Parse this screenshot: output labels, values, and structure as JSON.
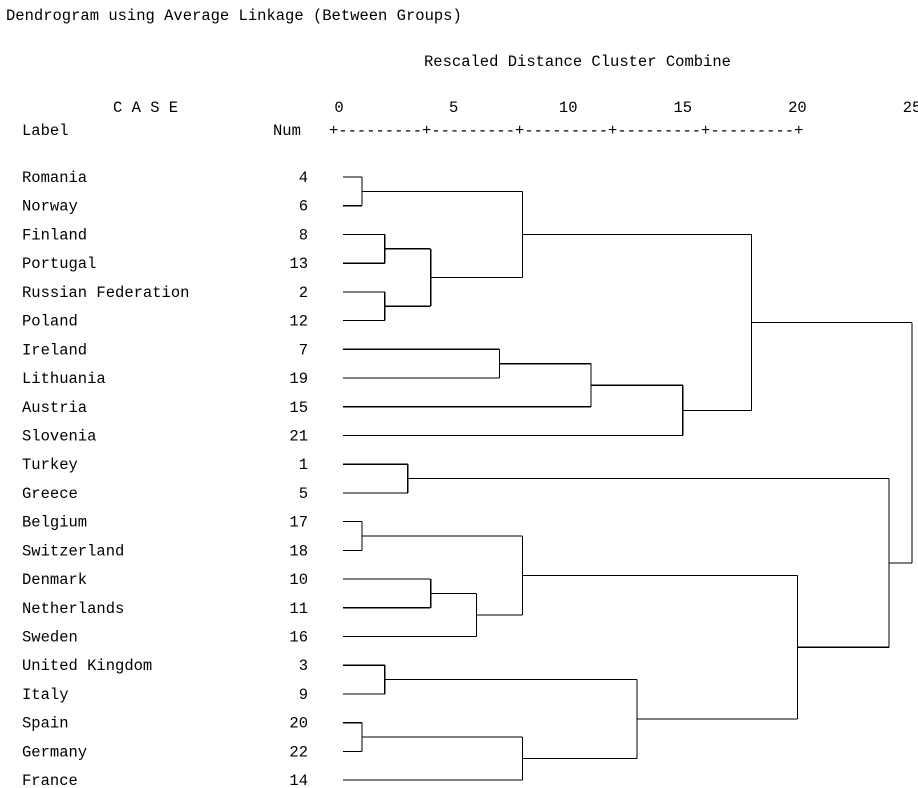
{
  "title": "Dendrogram using Average Linkage (Between Groups)",
  "subtitle": "Rescaled Distance Cluster Combine",
  "case_header": "C A S E",
  "label_header": "Label",
  "num_header": "Num",
  "axis_ruler": "+---------+---------+---------+---------+---------+",
  "axis_ticks": [
    {
      "value": 0,
      "label": "0"
    },
    {
      "value": 5,
      "label": "5"
    },
    {
      "value": 10,
      "label": "10"
    },
    {
      "value": 15,
      "label": "15"
    },
    {
      "value": 20,
      "label": "20"
    },
    {
      "value": 25,
      "label": "25"
    }
  ],
  "cases": [
    {
      "label": "Romania",
      "num": "4"
    },
    {
      "label": "Norway",
      "num": "6"
    },
    {
      "label": "Finland",
      "num": "8"
    },
    {
      "label": "Portugal",
      "num": "13"
    },
    {
      "label": "Russian Federation",
      "num": "2"
    },
    {
      "label": "Poland",
      "num": "12"
    },
    {
      "label": "Ireland",
      "num": "7"
    },
    {
      "label": "Lithuania",
      "num": "19"
    },
    {
      "label": "Austria",
      "num": "15"
    },
    {
      "label": "Slovenia",
      "num": "21"
    },
    {
      "label": "Turkey",
      "num": "1"
    },
    {
      "label": "Greece",
      "num": "5"
    },
    {
      "label": "Belgium",
      "num": "17"
    },
    {
      "label": "Switzerland",
      "num": "18"
    },
    {
      "label": "Denmark",
      "num": "10"
    },
    {
      "label": "Netherlands",
      "num": "11"
    },
    {
      "label": "Sweden",
      "num": "16"
    },
    {
      "label": "United Kingdom",
      "num": "3"
    },
    {
      "label": "Italy",
      "num": "9"
    },
    {
      "label": "Spain",
      "num": "20"
    },
    {
      "label": "Germany",
      "num": "22"
    },
    {
      "label": "France",
      "num": "14"
    }
  ],
  "merges": [
    {
      "id": "m1",
      "a": "L0",
      "b": "L1",
      "d": 1
    },
    {
      "id": "m2",
      "a": "L2",
      "b": "L3",
      "d": 2
    },
    {
      "id": "m3",
      "a": "L4",
      "b": "L5",
      "d": 2
    },
    {
      "id": "m4",
      "a": "m2",
      "b": "m3",
      "d": 4
    },
    {
      "id": "m5",
      "a": "m1",
      "b": "m4",
      "d": 8
    },
    {
      "id": "m6",
      "a": "L6",
      "b": "L7",
      "d": 7
    },
    {
      "id": "m7",
      "a": "m6",
      "b": "L8",
      "d": 11
    },
    {
      "id": "m8",
      "a": "m7",
      "b": "L9",
      "d": 15
    },
    {
      "id": "m9",
      "a": "m5",
      "b": "m8",
      "d": 18
    },
    {
      "id": "m10",
      "a": "L10",
      "b": "L11",
      "d": 3
    },
    {
      "id": "m11",
      "a": "L12",
      "b": "L13",
      "d": 1
    },
    {
      "id": "m12",
      "a": "L14",
      "b": "L15",
      "d": 4
    },
    {
      "id": "m13",
      "a": "m12",
      "b": "L16",
      "d": 6
    },
    {
      "id": "m14",
      "a": "m11",
      "b": "m13",
      "d": 8
    },
    {
      "id": "m15",
      "a": "L17",
      "b": "L18",
      "d": 2
    },
    {
      "id": "m16",
      "a": "L19",
      "b": "L20",
      "d": 1
    },
    {
      "id": "m17",
      "a": "m16",
      "b": "L21",
      "d": 8
    },
    {
      "id": "m18",
      "a": "m15",
      "b": "m17",
      "d": 13
    },
    {
      "id": "m19",
      "a": "m14",
      "b": "m18",
      "d": 20
    },
    {
      "id": "m20",
      "a": "m10",
      "b": "m19",
      "d": 24
    },
    {
      "id": "m21",
      "a": "m9",
      "b": "m20",
      "d": 25
    }
  ]
}
